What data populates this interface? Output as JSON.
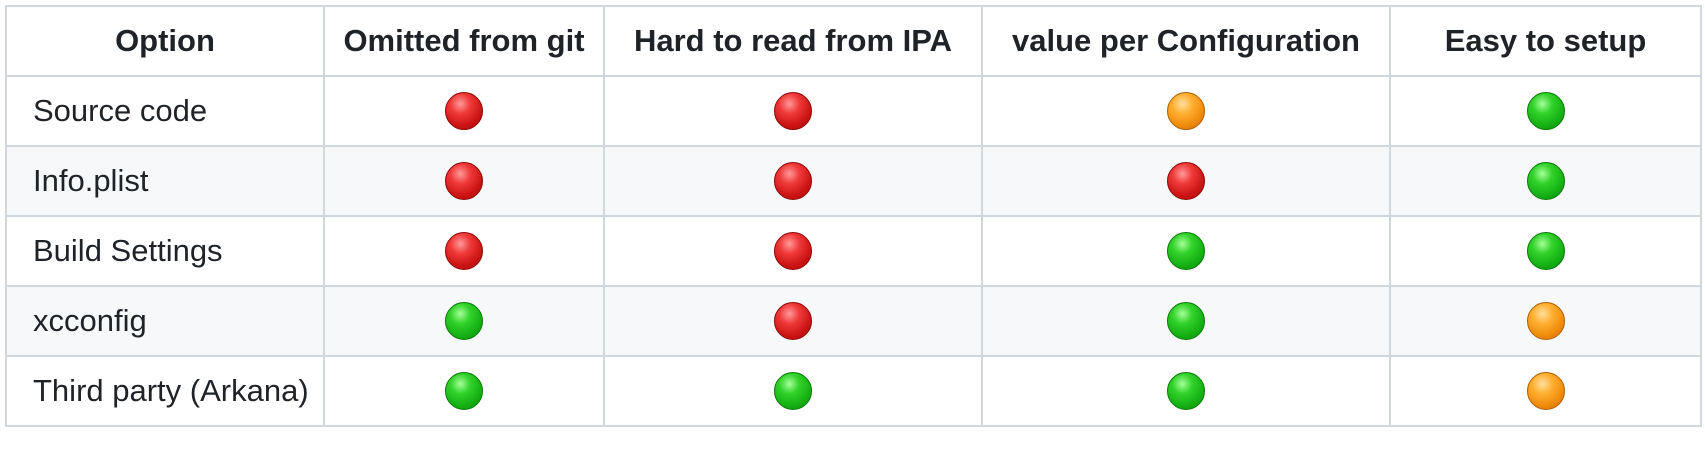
{
  "table": {
    "headers": [
      "Option",
      "Omitted from git",
      "Hard to read from IPA",
      "value per Configuration",
      "Easy to setup"
    ],
    "rows": [
      {
        "label": "Source code",
        "marks": [
          "red-circle-icon",
          "red-circle-icon",
          "orange-circle-icon",
          "green-circle-icon"
        ]
      },
      {
        "label": "Info.plist",
        "marks": [
          "red-circle-icon",
          "red-circle-icon",
          "red-circle-icon",
          "green-circle-icon"
        ]
      },
      {
        "label": "Build Settings",
        "marks": [
          "red-circle-icon",
          "red-circle-icon",
          "green-circle-icon",
          "green-circle-icon"
        ]
      },
      {
        "label": "xcconfig",
        "marks": [
          "green-circle-icon",
          "red-circle-icon",
          "green-circle-icon",
          "orange-circle-icon"
        ]
      },
      {
        "label": "Third party (Arkana)",
        "marks": [
          "green-circle-icon",
          "green-circle-icon",
          "green-circle-icon",
          "orange-circle-icon"
        ]
      }
    ]
  },
  "colors": {
    "red": "#cc1414",
    "green": "#16b014",
    "orange": "#f08c0c",
    "border": "#d0d7de",
    "alt_row_bg": "#f6f8fa"
  }
}
